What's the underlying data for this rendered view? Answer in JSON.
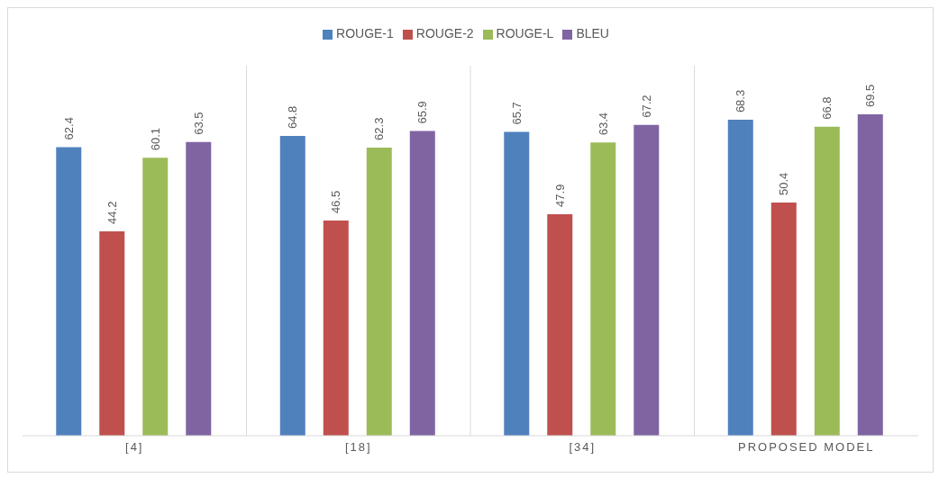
{
  "chart_data": {
    "type": "bar",
    "categories": [
      "[4]",
      "[18]",
      "[34]",
      "PROPOSED MODEL"
    ],
    "series": [
      {
        "name": "ROUGE-1",
        "color": "#4f81bd",
        "values": [
          62.4,
          64.8,
          65.7,
          68.3
        ]
      },
      {
        "name": "ROUGE-2",
        "color": "#c0504d",
        "values": [
          44.2,
          46.5,
          47.9,
          50.4
        ]
      },
      {
        "name": "ROUGE-L",
        "color": "#9bbb59",
        "values": [
          60.1,
          62.3,
          63.4,
          66.8
        ]
      },
      {
        "name": "BLEU",
        "color": "#8064a2",
        "values": [
          63.5,
          65.9,
          67.2,
          69.5
        ]
      }
    ],
    "ylim": [
      0,
      80
    ],
    "data_labels": true,
    "legend": "top",
    "grid": "x"
  }
}
